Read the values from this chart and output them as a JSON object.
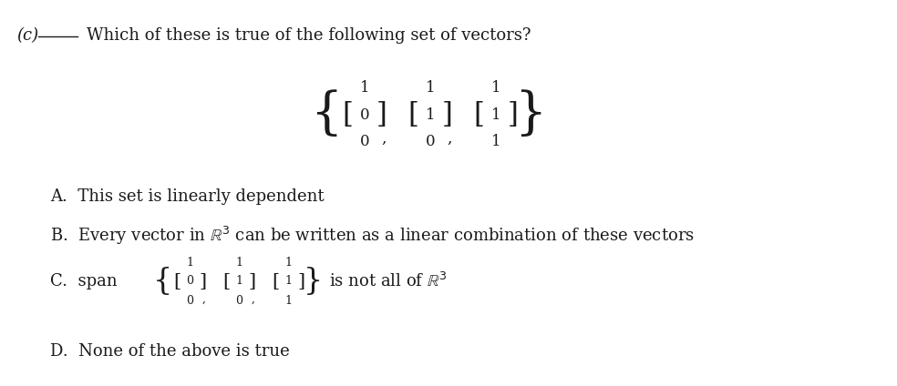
{
  "bg_color": "#ffffff",
  "text_color": "#1a1a1a",
  "figsize": [
    9.84,
    4.24
  ],
  "dpi": 100,
  "part_label": "(c)",
  "question": "Which of these is true of the following set of vectors?",
  "option_A": "A.  This set is linearly dependent",
  "option_B": "B.  Every vector in $\\mathbb{R}^3$ can be written as a linear combination of these vectors",
  "option_C_prefix": "C.  span",
  "option_C_suffix": " is not all of $\\mathbb{R}^3$",
  "option_D": "D.  None of the above is true"
}
